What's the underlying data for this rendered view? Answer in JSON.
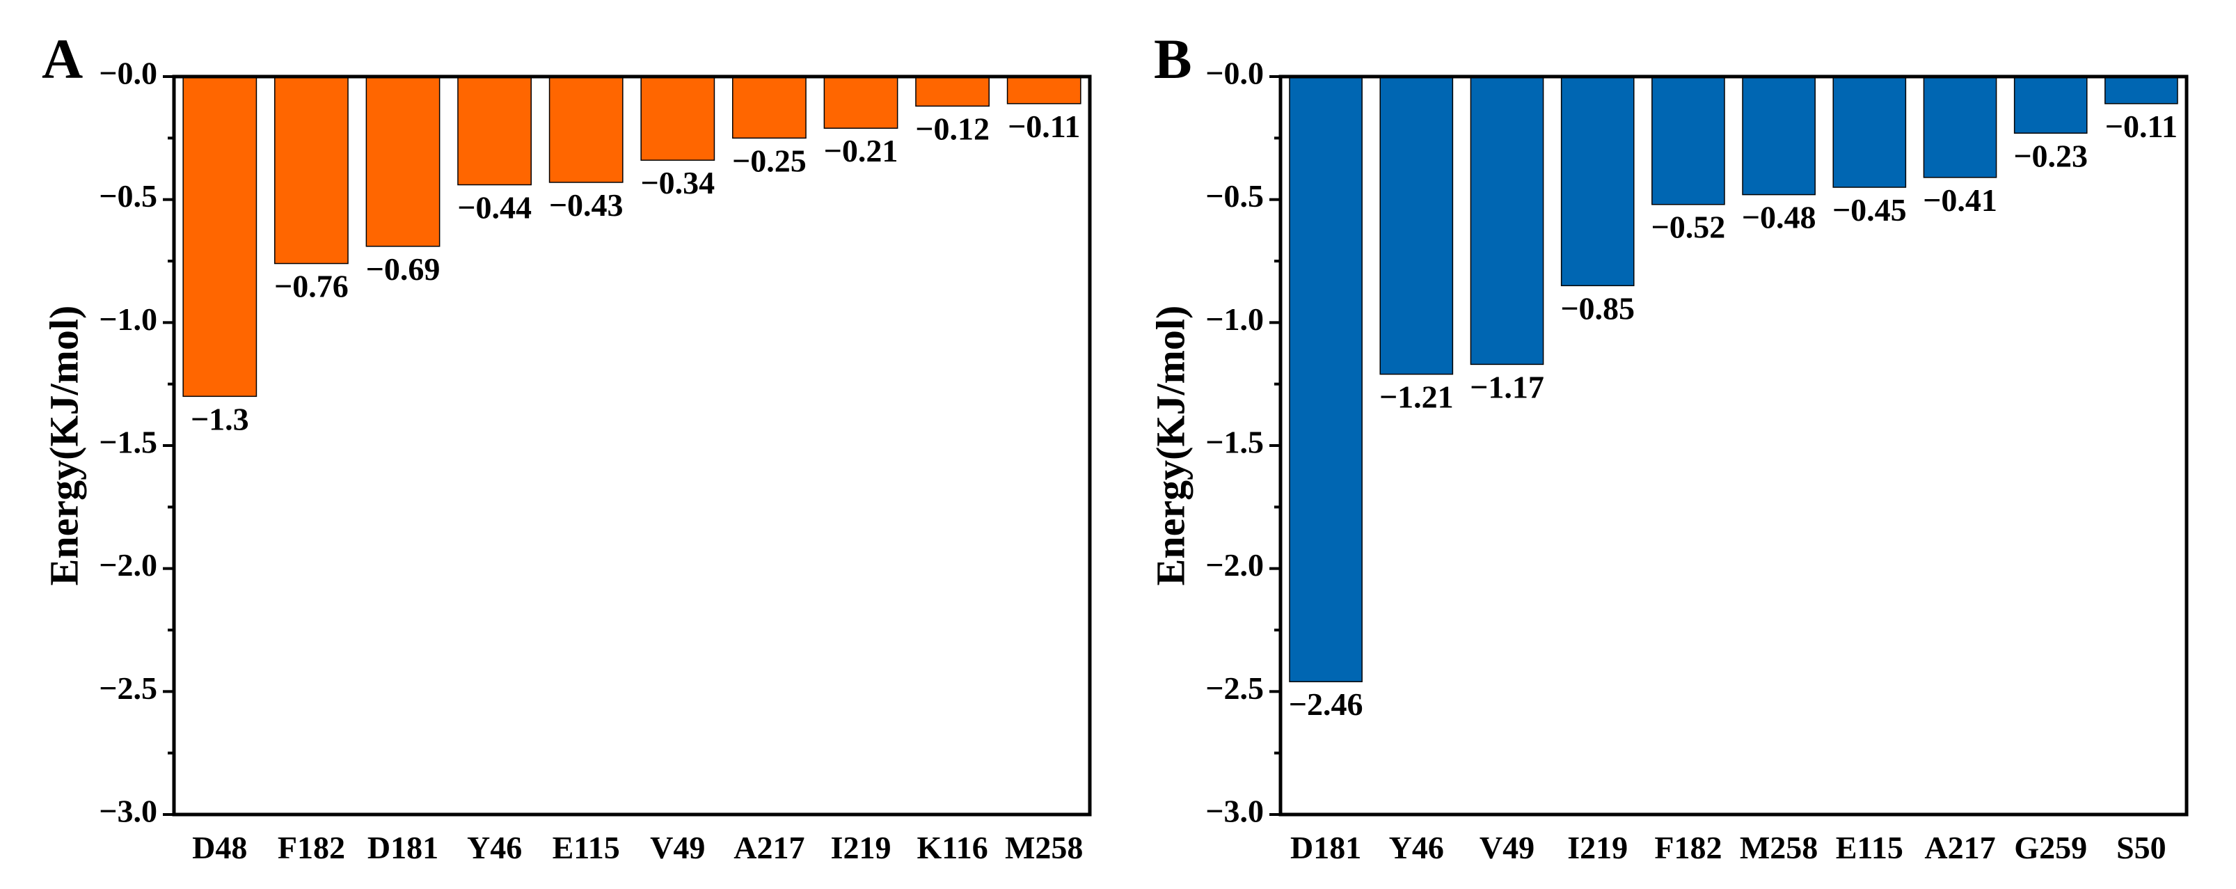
{
  "chart_data": [
    {
      "type": "bar",
      "panel_label": "A",
      "categories": [
        "D48",
        "F182",
        "D181",
        "Y46",
        "E115",
        "V49",
        "A217",
        "I219",
        "K116",
        "M258"
      ],
      "values": [
        -1.3,
        -0.76,
        -0.69,
        -0.44,
        -0.43,
        -0.34,
        -0.25,
        -0.21,
        -0.12,
        -0.11
      ],
      "value_labels": [
        "−1.3",
        "−0.76",
        "−0.69",
        "−0.44",
        "−0.43",
        "−0.34",
        "−0.25",
        "−0.21",
        "−0.12",
        "−0.11"
      ],
      "ylabel": "Energy(KJ/mol)",
      "xlabel": "",
      "ylim": [
        -3.0,
        0.0
      ],
      "yticks": [
        0.0,
        -0.5,
        -1.0,
        -1.5,
        -2.0,
        -2.5,
        -3.0
      ],
      "ytick_labels": [
        "−0.0",
        "−0.5",
        "−1.0",
        "−1.5",
        "−2.0",
        "−2.5",
        "−3.0"
      ],
      "color": "#ff6600",
      "grid": false,
      "legend": "none"
    },
    {
      "type": "bar",
      "panel_label": "B",
      "categories": [
        "D181",
        "Y46",
        "V49",
        "I219",
        "F182",
        "M258",
        "E115",
        "A217",
        "G259",
        "S50"
      ],
      "values": [
        -2.46,
        -1.21,
        -1.17,
        -0.85,
        -0.52,
        -0.48,
        -0.45,
        -0.41,
        -0.23,
        -0.11
      ],
      "value_labels": [
        "−2.46",
        "−1.21",
        "−1.17",
        "−0.85",
        "−0.52",
        "−0.48",
        "−0.45",
        "−0.41",
        "−0.23",
        "−0.11"
      ],
      "ylabel": "Energy(KJ/mol)",
      "xlabel": "",
      "ylim": [
        -3.0,
        0.0
      ],
      "yticks": [
        0.0,
        -0.5,
        -1.0,
        -1.5,
        -2.0,
        -2.5,
        -3.0
      ],
      "ytick_labels": [
        "−0.0",
        "−0.5",
        "−1.0",
        "−1.5",
        "−2.0",
        "−2.5",
        "−3.0"
      ],
      "color": "#0066b2",
      "grid": false,
      "legend": "none"
    }
  ]
}
